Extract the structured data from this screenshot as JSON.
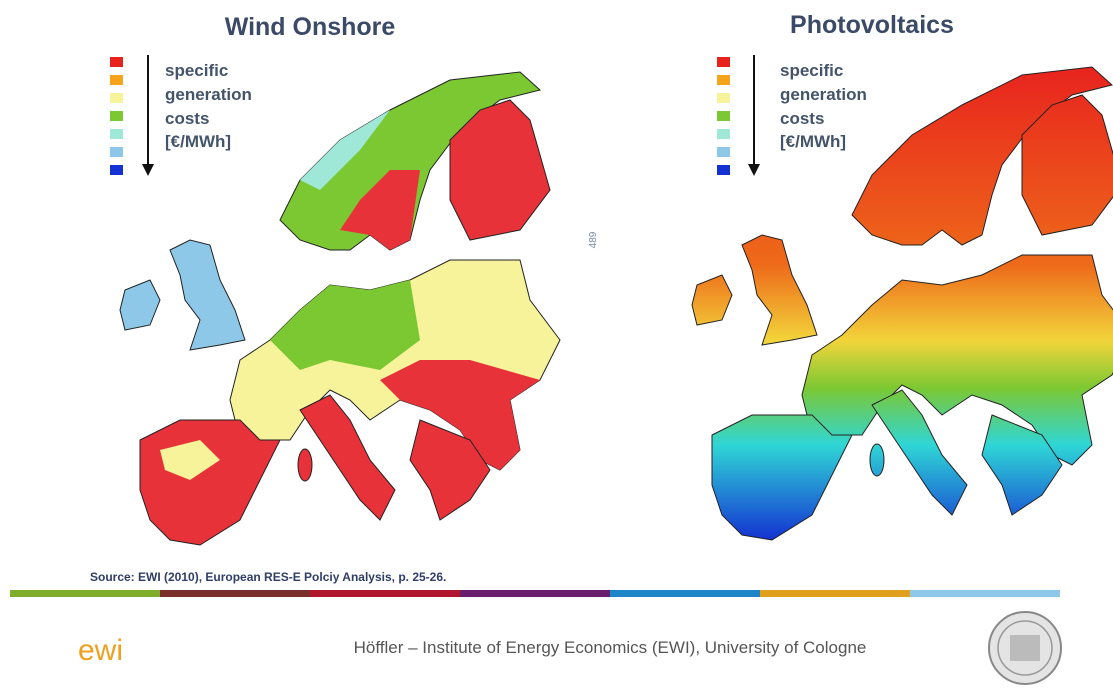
{
  "maps": [
    {
      "title": "Wind Onshore",
      "legend": [
        "specific",
        "generation",
        "costs",
        "[€/MWh]"
      ]
    },
    {
      "title": "Photovoltaics",
      "legend": [
        "specific",
        "generation",
        "costs",
        "[€/MWh]"
      ]
    }
  ],
  "page_number": "489",
  "source": "Source: EWI (2010), European RES-E Polciy Analysis, p. 25-26.",
  "footer": {
    "logo": "ewi",
    "text": "Höffler – Institute of Energy Economics (EWI), University of Cologne"
  }
}
